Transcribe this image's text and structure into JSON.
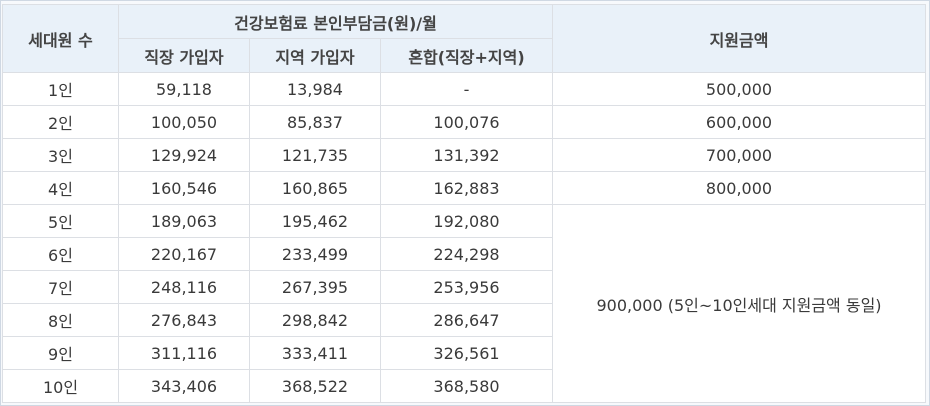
{
  "table": {
    "headers": {
      "household": "세대원 수",
      "premium_group": "건강보험료 본인부담금(원)/월",
      "workplace": "직장 가입자",
      "regional": "지역 가입자",
      "mixed": "혼합(직장+지역)",
      "support": "지원금액"
    },
    "rows": [
      {
        "household": "1인",
        "workplace": "59,118",
        "regional": "13,984",
        "mixed": "-",
        "support": "500,000"
      },
      {
        "household": "2인",
        "workplace": "100,050",
        "regional": "85,837",
        "mixed": "100,076",
        "support": "600,000"
      },
      {
        "household": "3인",
        "workplace": "129,924",
        "regional": "121,735",
        "mixed": "131,392",
        "support": "700,000"
      },
      {
        "household": "4인",
        "workplace": "160,546",
        "regional": "160,865",
        "mixed": "162,883",
        "support": "800,000"
      },
      {
        "household": "5인",
        "workplace": "189,063",
        "regional": "195,462",
        "mixed": "192,080"
      },
      {
        "household": "6인",
        "workplace": "220,167",
        "regional": "233,499",
        "mixed": "224,298"
      },
      {
        "household": "7인",
        "workplace": "248,116",
        "regional": "267,395",
        "mixed": "253,956"
      },
      {
        "household": "8인",
        "workplace": "276,843",
        "regional": "298,842",
        "mixed": "286,647"
      },
      {
        "household": "9인",
        "workplace": "311,116",
        "regional": "333,411",
        "mixed": "326,561"
      },
      {
        "household": "10인",
        "workplace": "343,406",
        "regional": "368,522",
        "mixed": "368,580"
      }
    ],
    "merged_support": "900,000 (5인~10인세대 지원금액 동일)"
  },
  "colors": {
    "header_bg": "#e9f1f9",
    "border": "#dcdfe4",
    "frame_bg": "#f7f9fc"
  }
}
